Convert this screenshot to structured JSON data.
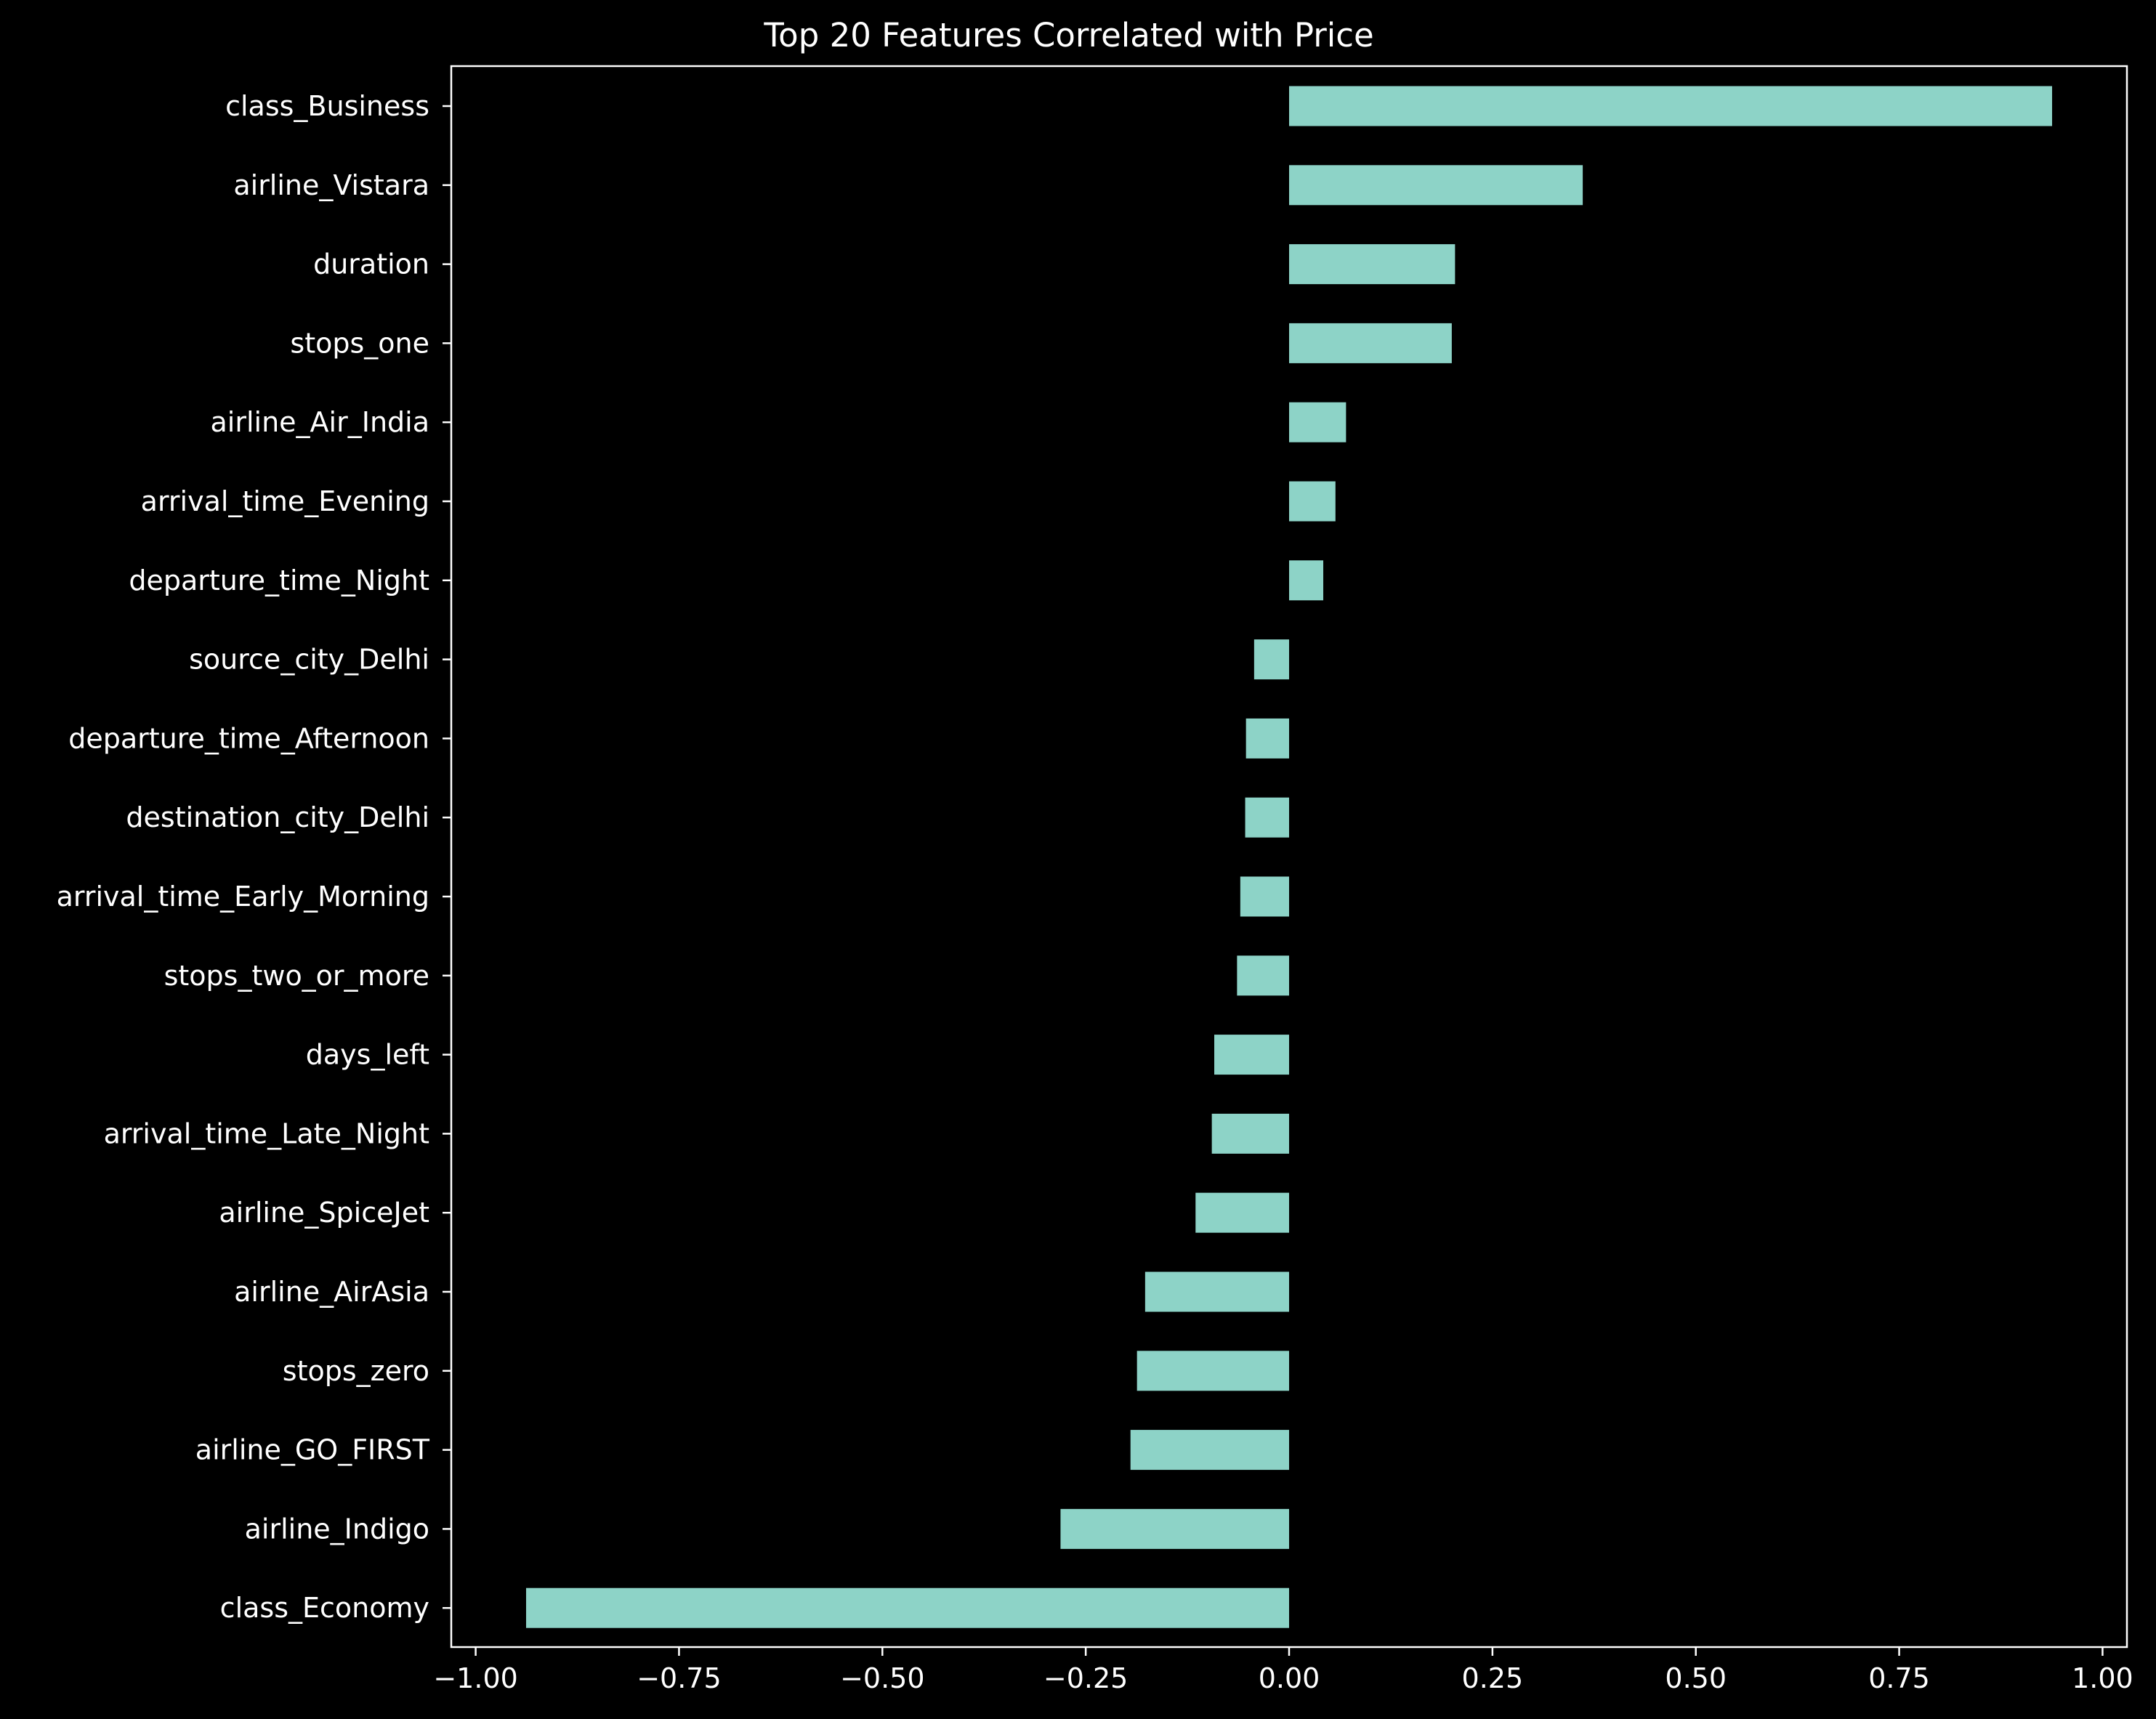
{
  "chart_data": {
    "type": "bar",
    "orientation": "horizontal",
    "title": "Top 20 Features Correlated with Price",
    "xlabel": "",
    "ylabel": "",
    "xlim": [
      -1.03,
      1.03
    ],
    "xticks": [
      -1.0,
      -0.75,
      -0.5,
      -0.25,
      0.0,
      0.25,
      0.5,
      0.75,
      1.0
    ],
    "xtick_labels": [
      "−1.00",
      "−0.75",
      "−0.50",
      "−0.25",
      "0.00",
      "0.25",
      "0.50",
      "0.75",
      "1.00"
    ],
    "grid": false,
    "legend": "none",
    "bar_color": "#8dd3c7",
    "background_color": "#000000",
    "categories": [
      "class_Business",
      "airline_Vistara",
      "duration",
      "stops_one",
      "airline_Air_India",
      "arrival_time_Evening",
      "departure_time_Night",
      "source_city_Delhi",
      "departure_time_Afternoon",
      "destination_city_Delhi",
      "arrival_time_Early_Morning",
      "stops_two_or_more",
      "days_left",
      "arrival_time_Late_Night",
      "airline_SpiceJet",
      "airline_AirAsia",
      "stops_zero",
      "airline_GO_FIRST",
      "airline_Indigo",
      "class_Economy"
    ],
    "values": [
      0.938,
      0.361,
      0.204,
      0.2,
      0.07,
      0.057,
      0.042,
      -0.043,
      -0.053,
      -0.054,
      -0.06,
      -0.064,
      -0.092,
      -0.095,
      -0.115,
      -0.177,
      -0.187,
      -0.195,
      -0.281,
      -0.938
    ]
  }
}
